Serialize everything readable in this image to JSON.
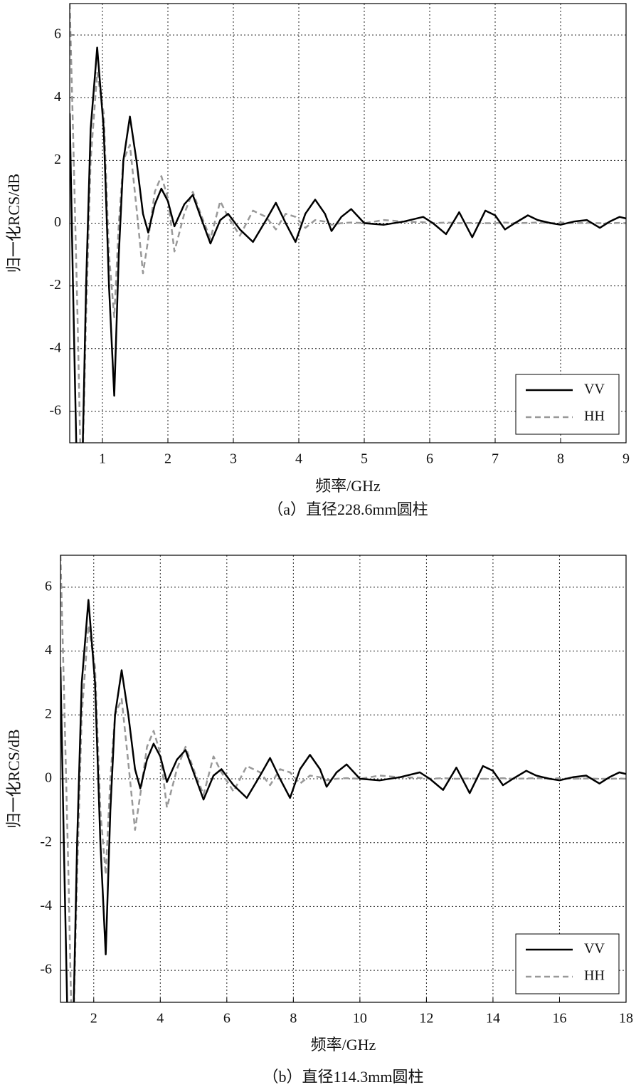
{
  "chart_data": [
    {
      "type": "line",
      "caption": "（a）直径228.6mm圆柱",
      "xlabel": "频率/GHz",
      "ylabel": "归一化RCS/dB",
      "x": [
        0.5,
        0.55,
        0.62,
        0.68,
        0.75,
        0.82,
        0.92,
        1.02,
        1.1,
        1.18,
        1.25,
        1.32,
        1.42,
        1.52,
        1.62,
        1.7,
        1.8,
        1.9,
        2.0,
        2.1,
        2.25,
        2.38,
        2.5,
        2.65,
        2.8,
        2.92,
        3.1,
        3.3,
        3.5,
        3.65,
        3.8,
        3.95,
        4.1,
        4.25,
        4.4,
        4.5,
        4.65,
        4.8,
        5.0,
        5.3,
        5.6,
        5.9,
        6.05,
        6.25,
        6.45,
        6.65,
        6.85,
        7.0,
        7.15,
        7.3,
        7.5,
        7.65,
        7.85,
        8.0,
        8.2,
        8.4,
        8.6,
        8.75,
        8.9,
        9.0
      ],
      "series": [
        {
          "name": "VV",
          "color": "#000000",
          "linestyle": "solid",
          "values": [
            3.5,
            -2,
            -9,
            -9,
            -2,
            3,
            5.6,
            3,
            -2,
            -5.5,
            -1,
            2,
            3.4,
            2,
            0.3,
            -0.3,
            0.6,
            1.1,
            0.7,
            -0.1,
            0.6,
            0.9,
            0.2,
            -0.65,
            0.1,
            0.3,
            -0.2,
            -0.6,
            0.1,
            0.65,
            0,
            -0.6,
            0.3,
            0.75,
            0.3,
            -0.25,
            0.2,
            0.45,
            0,
            -0.05,
            0.05,
            0.2,
            0,
            -0.35,
            0.35,
            -0.45,
            0.4,
            0.25,
            -0.2,
            0,
            0.25,
            0.1,
            0,
            -0.05,
            0.05,
            0.1,
            -0.15,
            0.05,
            0.2,
            0.15
          ]
        },
        {
          "name": "HH",
          "color": "#999999",
          "linestyle": "dashed",
          "values": [
            7,
            3,
            -3,
            -9,
            -3,
            2,
            4.8,
            3.5,
            -1,
            -3,
            0,
            2,
            2.5,
            0.5,
            -1.6,
            -0.5,
            1,
            1.5,
            0.8,
            -0.9,
            0.3,
            1.0,
            0.3,
            -0.5,
            0.7,
            0.2,
            -0.4,
            0.4,
            0.2,
            -0.2,
            0.3,
            0.2,
            -0.15,
            0.1,
            0.05,
            -0.05,
            0,
            0.02,
            0,
            0.1,
            0.05,
            0.03,
            0,
            0.02,
            0,
            0.01,
            0,
            0,
            0.02,
            0,
            0.01,
            0.02,
            0,
            0.02,
            0,
            0.01,
            0,
            0,
            0.01,
            0
          ]
        }
      ],
      "xlim": [
        0.5,
        9
      ],
      "ylim": [
        -7,
        7
      ],
      "xticks": [
        1,
        2,
        3,
        4,
        5,
        6,
        7,
        8,
        9
      ],
      "yticks": [
        -6,
        -4,
        -2,
        0,
        2,
        4,
        6
      ],
      "grid": true,
      "legend": "lower right"
    },
    {
      "type": "line",
      "caption": "（b）直径114.3mm圆柱",
      "xlabel": "频率/GHz",
      "ylabel": "归一化RCS/dB",
      "x": [
        1,
        1.1,
        1.24,
        1.36,
        1.5,
        1.64,
        1.84,
        2.04,
        2.2,
        2.36,
        2.5,
        2.64,
        2.84,
        3.04,
        3.24,
        3.4,
        3.6,
        3.8,
        4.0,
        4.2,
        4.5,
        4.76,
        5.0,
        5.3,
        5.6,
        5.84,
        6.2,
        6.6,
        7.0,
        7.3,
        7.6,
        7.9,
        8.2,
        8.5,
        8.8,
        9.0,
        9.3,
        9.6,
        10.0,
        10.6,
        11.2,
        11.8,
        12.1,
        12.5,
        12.9,
        13.3,
        13.7,
        14.0,
        14.3,
        14.6,
        15.0,
        15.3,
        15.7,
        16.0,
        16.4,
        16.8,
        17.2,
        17.5,
        17.8,
        18.0
      ],
      "series": [
        {
          "name": "VV",
          "color": "#000000",
          "linestyle": "solid",
          "values": [
            3.5,
            -2,
            -9,
            -9,
            -2,
            3,
            5.6,
            3,
            -2,
            -5.5,
            -1,
            2,
            3.4,
            2,
            0.3,
            -0.3,
            0.6,
            1.1,
            0.7,
            -0.1,
            0.6,
            0.9,
            0.2,
            -0.65,
            0.1,
            0.3,
            -0.2,
            -0.6,
            0.1,
            0.65,
            0,
            -0.6,
            0.3,
            0.75,
            0.3,
            -0.25,
            0.2,
            0.45,
            0,
            -0.05,
            0.05,
            0.2,
            0,
            -0.35,
            0.35,
            -0.45,
            0.4,
            0.25,
            -0.2,
            0,
            0.25,
            0.1,
            0,
            -0.05,
            0.05,
            0.1,
            -0.15,
            0.05,
            0.2,
            0.15
          ]
        },
        {
          "name": "HH",
          "color": "#999999",
          "linestyle": "dashed",
          "values": [
            7,
            3,
            -3,
            -9,
            -3,
            2,
            4.8,
            3.5,
            -1,
            -3,
            0,
            2,
            2.5,
            0.5,
            -1.6,
            -0.5,
            1,
            1.5,
            0.8,
            -0.9,
            0.3,
            1.0,
            0.3,
            -0.5,
            0.7,
            0.2,
            -0.4,
            0.4,
            0.2,
            -0.2,
            0.3,
            0.2,
            -0.15,
            0.1,
            0.05,
            -0.05,
            0,
            0.02,
            0,
            0.1,
            0.05,
            0.03,
            0,
            0.02,
            0,
            0.01,
            0,
            0,
            0.02,
            0,
            0.01,
            0.02,
            0,
            0.02,
            0,
            0.01,
            0,
            0,
            0.01,
            0
          ]
        }
      ],
      "xlim": [
        1,
        18
      ],
      "ylim": [
        -7,
        7
      ],
      "xticks": [
        2,
        4,
        6,
        8,
        10,
        12,
        14,
        16,
        18
      ],
      "yticks": [
        -6,
        -4,
        -2,
        0,
        2,
        4,
        6
      ],
      "grid": true,
      "legend": "lower right"
    }
  ]
}
